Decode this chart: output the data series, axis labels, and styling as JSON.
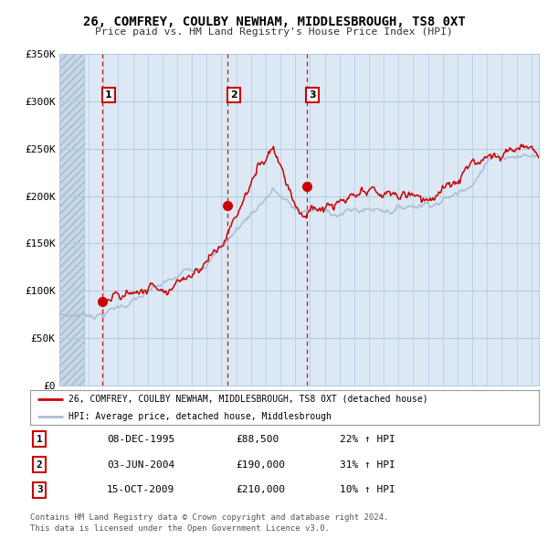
{
  "title1": "26, COMFREY, COULBY NEWHAM, MIDDLESBROUGH, TS8 0XT",
  "title2": "Price paid vs. HM Land Registry's House Price Index (HPI)",
  "sale_color": "#cc0000",
  "hpi_color": "#aabdd4",
  "vline_color": "#cc0000",
  "plot_bg": "#dce9f5",
  "hatch_color": "#c8d8e8",
  "grid_color": "#b0c8e0",
  "sales": [
    {
      "date": 1995.94,
      "price": 88500,
      "label": "1"
    },
    {
      "date": 2004.42,
      "price": 190000,
      "label": "2"
    },
    {
      "date": 2009.79,
      "price": 210000,
      "label": "3"
    }
  ],
  "legend_sale": "26, COMFREY, COULBY NEWHAM, MIDDLESBROUGH, TS8 0XT (detached house)",
  "legend_hpi": "HPI: Average price, detached house, Middlesbrough",
  "table_rows": [
    {
      "num": "1",
      "date": "08-DEC-1995",
      "price": "£88,500",
      "note": "22% ↑ HPI"
    },
    {
      "num": "2",
      "date": "03-JUN-2004",
      "price": "£190,000",
      "note": "31% ↑ HPI"
    },
    {
      "num": "3",
      "date": "15-OCT-2009",
      "price": "£210,000",
      "note": "10% ↑ HPI"
    }
  ],
  "footer1": "Contains HM Land Registry data © Crown copyright and database right 2024.",
  "footer2": "This data is licensed under the Open Government Licence v3.0.",
  "xmin": 1993,
  "xmax": 2025.5,
  "ymin": 0,
  "ymax": 350000,
  "yticks": [
    0,
    50000,
    100000,
    150000,
    200000,
    250000,
    300000,
    350000
  ],
  "ytick_labels": [
    "£0",
    "£50K",
    "£100K",
    "£150K",
    "£200K",
    "£250K",
    "£300K",
    "£350K"
  ]
}
